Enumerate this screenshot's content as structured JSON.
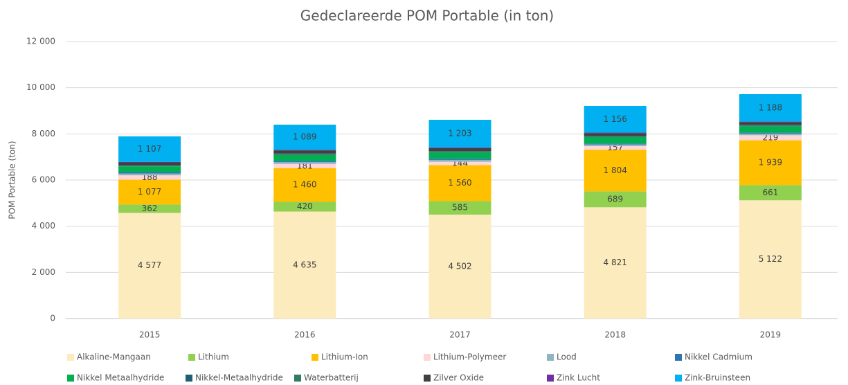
{
  "chart_data": {
    "type": "stacked_bar",
    "title": "Gedeclareerde POM Portable (in ton)",
    "y_label": "POM Portable (ton)",
    "categories": [
      "2015",
      "2016",
      "2017",
      "2018",
      "2019"
    ],
    "ylim": [
      0,
      12000
    ],
    "yticks": [
      0,
      {
        "value": 2000,
        "label": "2 000"
      },
      {
        "value": 4000,
        "label": "4 000"
      },
      {
        "value": 6000,
        "label": "6 000"
      },
      {
        "value": 8000,
        "label": "8 000"
      },
      {
        "value": 10000,
        "label": "10 000"
      },
      {
        "value": 12000,
        "label": "12 000"
      }
    ],
    "grid": true,
    "legend": "bottom",
    "series": [
      {
        "name": "Alkaline-Mangaan",
        "color": "#fcebbd",
        "values": [
          4577,
          4635,
          4502,
          4821,
          5122
        ],
        "value_labels": [
          "4 577",
          "4 635",
          "4 502",
          "4 821",
          "5 122"
        ]
      },
      {
        "name": "Lithium",
        "color": "#92d050",
        "values": [
          362,
          420,
          585,
          689,
          661
        ],
        "show_labels": true
      },
      {
        "name": "Lithium-Ion",
        "color": "#ffc000",
        "values": [
          1077,
          1460,
          1560,
          1804,
          1939
        ],
        "value_labels": [
          "1 077",
          "1 460",
          "1 560",
          "1 804",
          "1 939"
        ]
      },
      {
        "name": "Lithium-Polymeer",
        "color": "#ffd7d7",
        "values": [
          188,
          181,
          144,
          157,
          219
        ],
        "show_labels": true
      },
      {
        "name": "Lood",
        "color": "#8fb4c2",
        "values": [
          80,
          80,
          80,
          70,
          70
        ]
      },
      {
        "name": "Nikkel Cadmium",
        "color": "#2e75b6",
        "values": [
          60,
          50,
          50,
          40,
          40
        ]
      },
      {
        "name": "Nikkel Metaalhydride",
        "color": "#00b050",
        "values": [
          250,
          260,
          270,
          280,
          280
        ]
      },
      {
        "name": "Nikkel-Metaalhydride",
        "color": "#1f5f73",
        "values": [
          25,
          30,
          30,
          25,
          30
        ]
      },
      {
        "name": "Waterbatterij",
        "color": "#2e7d63",
        "values": [
          25,
          30,
          30,
          25,
          30
        ]
      },
      {
        "name": "Zilver Oxide",
        "color": "#404040",
        "values": [
          120,
          140,
          130,
          120,
          120
        ]
      },
      {
        "name": "Zink Lucht",
        "color": "#7030a0",
        "values": [
          20,
          25,
          26,
          23,
          21
        ]
      },
      {
        "name": "Zink-Bruinsteen",
        "color": "#00b0f0",
        "values": [
          1107,
          1089,
          1203,
          1156,
          1188
        ],
        "value_labels": [
          "1 107",
          "1 089",
          "1 203",
          "1 156",
          "1 188"
        ]
      }
    ]
  }
}
